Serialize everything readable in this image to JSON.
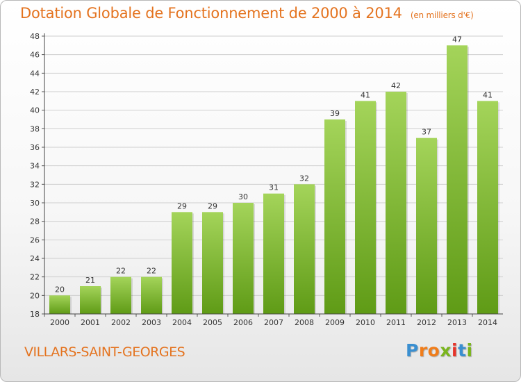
{
  "title": "Dotation Globale de Fonctionnement de 2000 à 2014",
  "subtitle": "(en milliers d'€)",
  "commune": "VILLARS-SAINT-GEORGES",
  "logo": {
    "letters": [
      "P",
      "r",
      "o",
      "x",
      "i",
      "t",
      "i"
    ],
    "colors": [
      "#3a8fd0",
      "#f07d1a",
      "#f07d1a",
      "#7ab51d",
      "#e6342a",
      "#3a8fd0",
      "#7ab51d"
    ]
  },
  "colors": {
    "title": "#e4731f",
    "bar_top": "#a4d45a",
    "bar_bottom": "#5f9b16",
    "grid": "#cfcfcf"
  },
  "chart_data": {
    "type": "bar",
    "title": "Dotation Globale de Fonctionnement de 2000 à 2014",
    "subtitle": "(en milliers d'€)",
    "xlabel": "",
    "ylabel": "",
    "categories": [
      "2000",
      "2001",
      "2002",
      "2003",
      "2004",
      "2005",
      "2006",
      "2007",
      "2008",
      "2009",
      "2010",
      "2011",
      "2012",
      "2013",
      "2014"
    ],
    "values": [
      20,
      21,
      22,
      22,
      29,
      29,
      30,
      31,
      32,
      39,
      41,
      42,
      37,
      47,
      41
    ],
    "ylim": [
      18,
      48
    ],
    "yticks": [
      18,
      20,
      22,
      24,
      26,
      28,
      30,
      32,
      34,
      36,
      38,
      40,
      42,
      44,
      46,
      48
    ],
    "grid": true,
    "data_labels": true
  }
}
